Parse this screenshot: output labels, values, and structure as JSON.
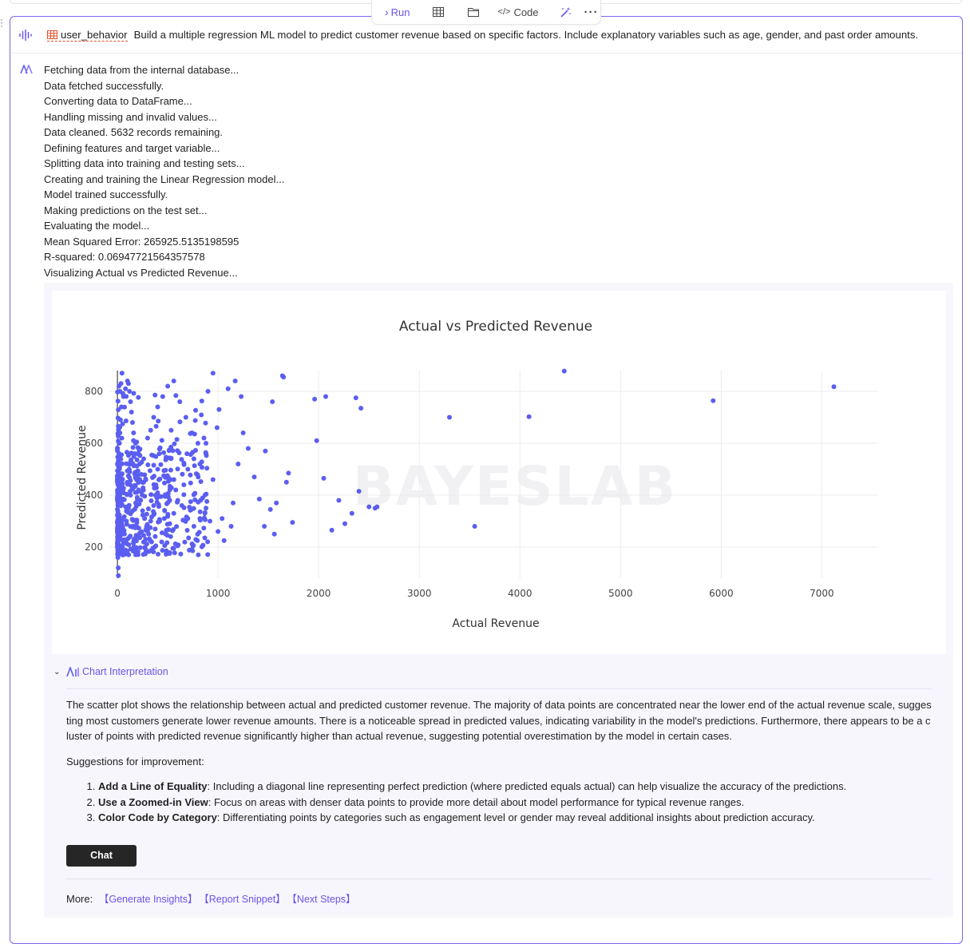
{
  "toolbar": {
    "run_label": "Run",
    "code_label": "Code",
    "icons": [
      "run-arrow-icon",
      "table-icon",
      "folder-icon",
      "code-icon",
      "magic-wand-icon",
      "more-icon"
    ]
  },
  "cell": {
    "dataset": "user_behavior",
    "prompt": "Build a multiple regression ML model to predict customer revenue based on specific factors. Include explanatory variables such as age, gender, and past order amounts."
  },
  "log": {
    "lines": [
      "Fetching data from the internal database...",
      "Data fetched successfully.",
      "Converting data to DataFrame...",
      "Handling missing and invalid values...",
      "Data cleaned. 5632 records remaining.",
      "Defining features and target variable...",
      "Splitting data into training and testing sets...",
      "Creating and training the Linear Regression model...",
      "Model trained successfully.",
      "Making predictions on the test set...",
      "Evaluating the model...",
      "Mean Squared Error: 265925.5135198595",
      "R-squared: 0.06947721564357578",
      "Visualizing Actual vs Predicted Revenue..."
    ]
  },
  "chart_data": {
    "type": "scatter",
    "title": "Actual vs Predicted Revenue",
    "xlabel": "Actual Revenue",
    "ylabel": "Predicted Revenue",
    "xlim": [
      -80,
      7560
    ],
    "ylim": [
      80,
      880
    ],
    "xticks": [
      0,
      1000,
      2000,
      3000,
      4000,
      5000,
      6000,
      7000
    ],
    "yticks": [
      200,
      400,
      600,
      800
    ],
    "grid": true,
    "color": "#5b5ef0",
    "watermark": "BAYESLAB",
    "points": [
      [
        7120,
        818
      ],
      [
        5920,
        764
      ],
      [
        4440,
        878
      ],
      [
        4090,
        702
      ],
      [
        3300,
        700
      ],
      [
        3550,
        280
      ],
      [
        2420,
        735
      ],
      [
        2370,
        775
      ],
      [
        2560,
        350
      ],
      [
        2580,
        355
      ],
      [
        2500,
        355
      ],
      [
        2400,
        415
      ],
      [
        2330,
        330
      ],
      [
        2260,
        290
      ],
      [
        2130,
        265
      ],
      [
        2200,
        380
      ],
      [
        2050,
        465
      ],
      [
        2070,
        780
      ],
      [
        1960,
        770
      ],
      [
        1980,
        610
      ],
      [
        1650,
        855
      ],
      [
        1640,
        860
      ],
      [
        1540,
        760
      ],
      [
        1700,
        485
      ],
      [
        1680,
        450
      ],
      [
        1740,
        295
      ],
      [
        1580,
        370
      ],
      [
        1520,
        345
      ],
      [
        1460,
        280
      ],
      [
        1560,
        250
      ],
      [
        1250,
        640
      ],
      [
        1300,
        580
      ],
      [
        1470,
        570
      ],
      [
        1360,
        470
      ],
      [
        1410,
        385
      ],
      [
        1200,
        520
      ],
      [
        1150,
        370
      ],
      [
        1130,
        280
      ],
      [
        1060,
        225
      ],
      [
        1100,
        810
      ],
      [
        1170,
        840
      ],
      [
        1230,
        780
      ],
      [
        1010,
        730
      ],
      [
        990,
        660
      ],
      [
        950,
        460
      ],
      [
        880,
        350
      ],
      [
        1040,
        310
      ],
      [
        1000,
        260
      ],
      [
        880,
        560
      ],
      [
        820,
        520
      ],
      [
        760,
        540
      ],
      [
        700,
        500
      ],
      [
        660,
        440
      ],
      [
        600,
        380
      ],
      [
        560,
        330
      ],
      [
        520,
        290
      ],
      [
        480,
        250
      ],
      [
        440,
        220
      ],
      [
        400,
        400
      ],
      [
        360,
        360
      ],
      [
        330,
        300
      ],
      [
        300,
        260
      ],
      [
        280,
        230
      ],
      [
        260,
        450
      ],
      [
        240,
        480
      ],
      [
        220,
        520
      ],
      [
        200,
        560
      ],
      [
        180,
        600
      ],
      [
        160,
        640
      ],
      [
        150,
        680
      ],
      [
        140,
        720
      ],
      [
        130,
        760
      ],
      [
        120,
        800
      ],
      [
        110,
        830
      ],
      [
        100,
        840
      ],
      [
        80,
        810
      ],
      [
        60,
        780
      ],
      [
        40,
        740
      ],
      [
        30,
        690
      ],
      [
        25,
        640
      ],
      [
        20,
        600
      ],
      [
        15,
        560
      ],
      [
        10,
        520
      ],
      [
        8,
        480
      ],
      [
        6,
        440
      ],
      [
        5,
        400
      ],
      [
        4,
        360
      ],
      [
        3,
        320
      ],
      [
        2,
        280
      ],
      [
        1,
        240
      ],
      [
        0,
        200
      ],
      [
        5,
        160
      ],
      [
        8,
        120
      ],
      [
        10,
        90
      ],
      [
        50,
        200
      ],
      [
        70,
        250
      ],
      [
        90,
        300
      ],
      [
        110,
        350
      ],
      [
        130,
        400
      ],
      [
        160,
        430
      ],
      [
        190,
        460
      ],
      [
        210,
        420
      ],
      [
        230,
        380
      ],
      [
        250,
        340
      ],
      [
        270,
        310
      ],
      [
        290,
        280
      ],
      [
        310,
        250
      ],
      [
        340,
        220
      ],
      [
        370,
        200
      ],
      [
        420,
        300
      ],
      [
        470,
        340
      ],
      [
        520,
        380
      ],
      [
        580,
        420
      ],
      [
        640,
        360
      ],
      [
        700,
        310
      ],
      [
        760,
        280
      ],
      [
        820,
        310
      ],
      [
        870,
        330
      ],
      [
        920,
        300
      ],
      [
        300,
        620
      ],
      [
        330,
        650
      ],
      [
        360,
        700
      ],
      [
        400,
        740
      ],
      [
        450,
        780
      ],
      [
        500,
        820
      ],
      [
        560,
        840
      ],
      [
        620,
        760
      ],
      [
        680,
        700
      ],
      [
        740,
        640
      ],
      [
        800,
        600
      ],
      [
        860,
        620
      ],
      [
        900,
        800
      ],
      [
        950,
        870
      ],
      [
        45,
        870
      ],
      [
        35,
        830
      ],
      [
        15,
        820
      ],
      [
        25,
        800
      ]
    ]
  },
  "interpretation": {
    "title": "Chart Interpretation",
    "paragraph": "The scatter plot shows the relationship between actual and predicted customer revenue. The majority of data points are concentrated near the lower end of the actual revenue scale, suggesting most customers generate lower revenue amounts. There is a noticeable spread in predicted values, indicating variability in the model's predictions. Furthermore, there appears to be a cluster of points with predicted revenue significantly higher than actual revenue, suggesting potential overestimation by the model in certain cases.",
    "suggestions_heading": "Suggestions for improvement:",
    "suggestions": [
      {
        "title": "Add a Line of Equality",
        "text": ": Including a diagonal line representing perfect prediction (where predicted equals actual) can help visualize the accuracy of the predictions."
      },
      {
        "title": "Use a Zoomed-in View",
        "text": ": Focus on areas with denser data points to provide more detail about model performance for typical revenue ranges."
      },
      {
        "title": "Color Code by Category",
        "text": ": Differentiating points by categories such as engagement level or gender may reveal additional insights about prediction accuracy."
      }
    ],
    "chat_label": "Chat",
    "more_label": "More:",
    "more_links": [
      "【Generate Insights】",
      "【Report Snippet】",
      "【Next Steps】"
    ]
  }
}
